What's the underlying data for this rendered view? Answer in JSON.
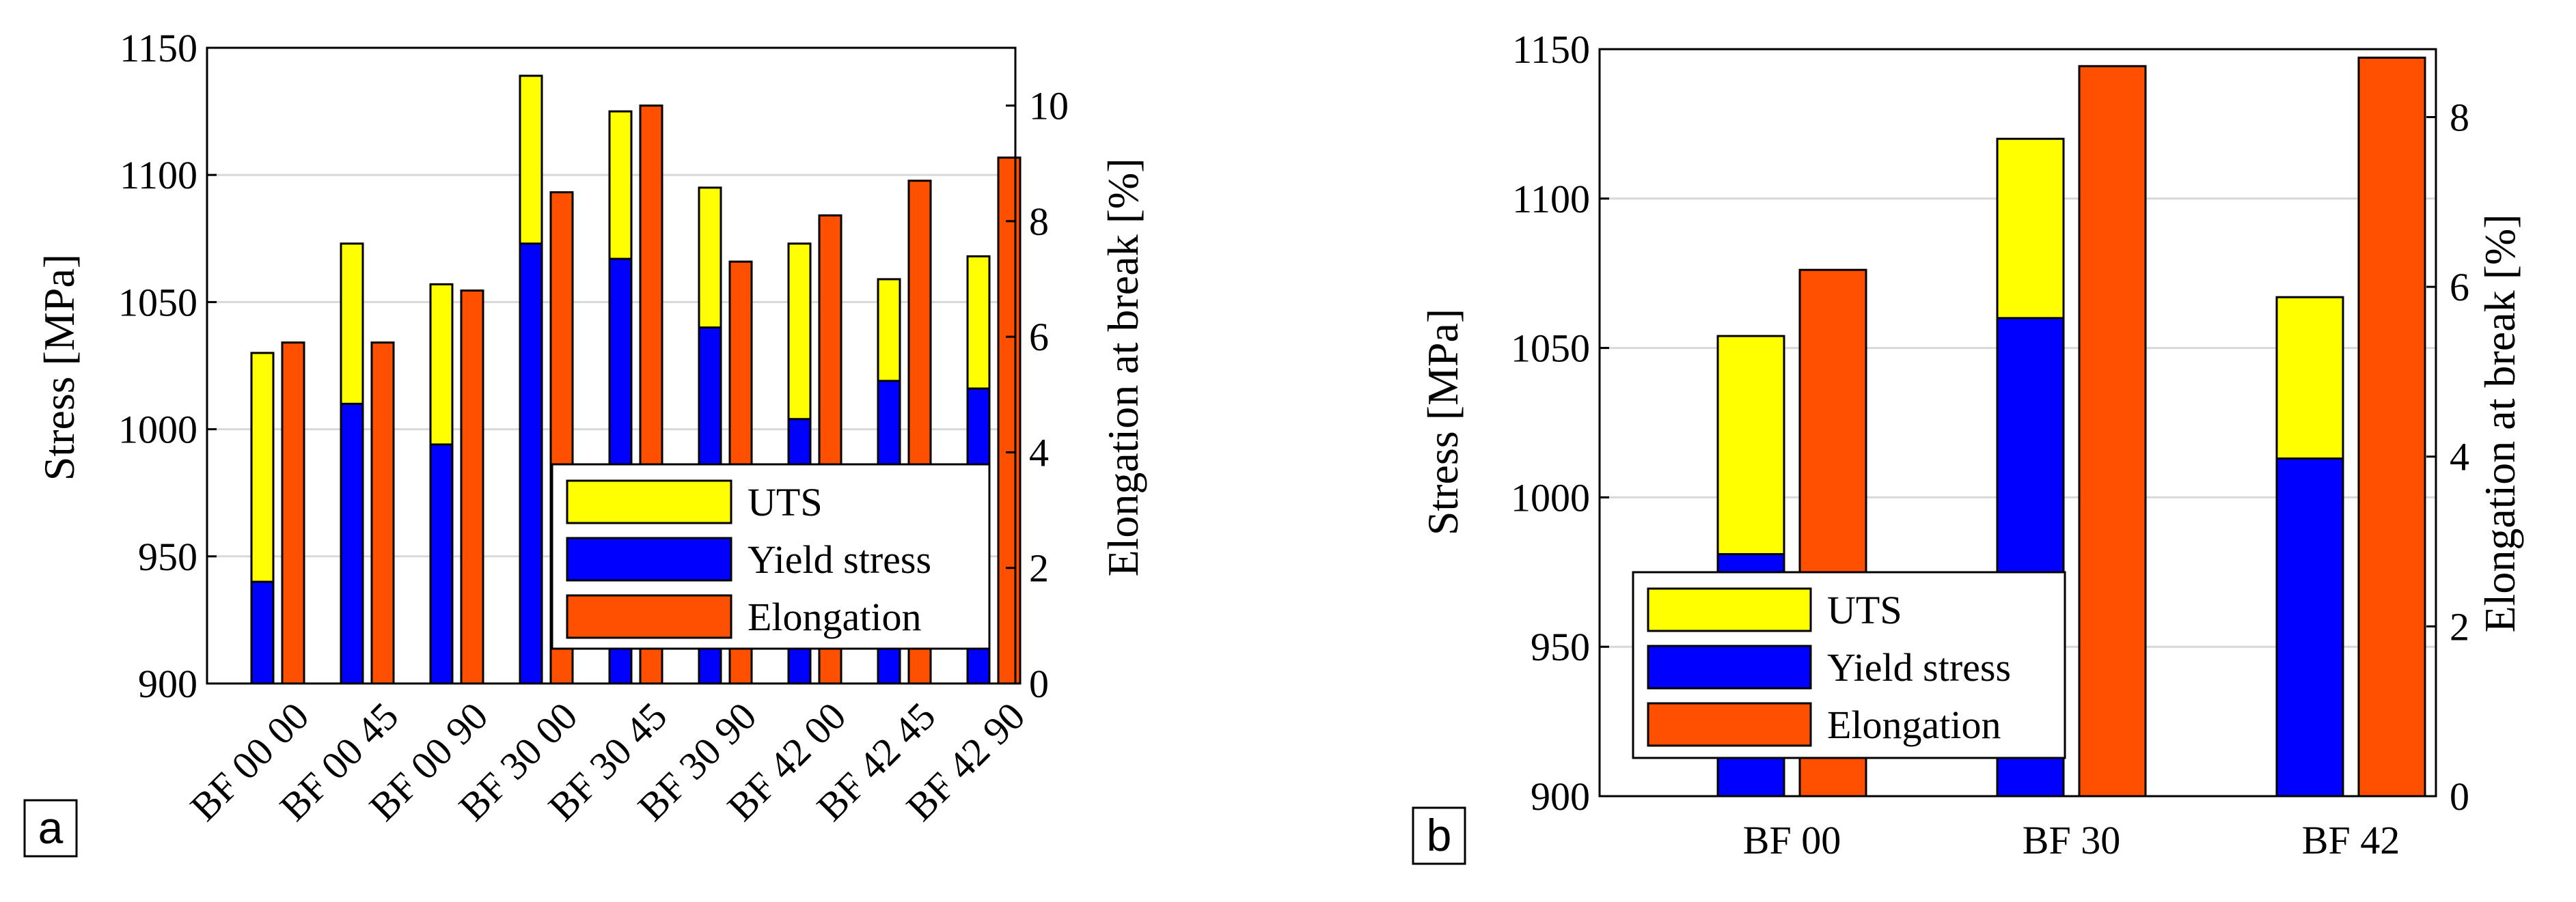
{
  "chart_data": [
    {
      "type": "bar",
      "panel_label": "a",
      "categories": [
        "BF 00 00",
        "BF 00 45",
        "BF 00 90",
        "BF 30 00",
        "BF 30 45",
        "BF 30 90",
        "BF 42 00",
        "BF 42 45",
        "BF 42 90"
      ],
      "series": [
        {
          "name": "UTS",
          "axis": "left",
          "color": "#ffff00",
          "values": [
            1030,
            1073,
            1057,
            1139,
            1125,
            1095,
            1073,
            1059,
            1068
          ]
        },
        {
          "name": "Yield stress",
          "axis": "left",
          "color": "#0000ff",
          "values": [
            940,
            1010,
            994,
            1073,
            1067,
            1040,
            1004,
            1019,
            1016
          ]
        },
        {
          "name": "Elongation",
          "axis": "right",
          "color": "#ff5000",
          "values": [
            5.9,
            5.9,
            6.8,
            8.5,
            10.0,
            7.3,
            8.1,
            8.7,
            9.1
          ]
        }
      ],
      "ylabel": "Stress [MPa]",
      "y2label": "Elongation at break [%]",
      "ylim": [
        900,
        1150
      ],
      "y2lim": [
        0,
        11
      ],
      "yticks": [
        "900",
        "950",
        "1000",
        "1050",
        "1100",
        "1150"
      ],
      "y2ticks": [
        "0",
        "2",
        "4",
        "6",
        "8",
        "10"
      ],
      "legend": [
        "UTS",
        "Yield stress",
        "Elongation"
      ],
      "legend_position": "bottom-right",
      "grid": true
    },
    {
      "type": "bar",
      "panel_label": "b",
      "categories": [
        "BF 00",
        "BF 30",
        "BF 42"
      ],
      "series": [
        {
          "name": "UTS",
          "axis": "left",
          "color": "#ffff00",
          "values": [
            1054,
            1120,
            1067
          ]
        },
        {
          "name": "Yield stress",
          "axis": "left",
          "color": "#0000ff",
          "values": [
            981,
            1060,
            1013
          ]
        },
        {
          "name": "Elongation",
          "axis": "right",
          "color": "#ff5000",
          "values": [
            6.2,
            8.6,
            8.7
          ]
        }
      ],
      "ylabel": "Stress [MPa]",
      "y2label": "Elongation at break [%]",
      "ylim": [
        900,
        1150
      ],
      "y2lim": [
        0,
        8.8
      ],
      "yticks": [
        "900",
        "950",
        "1000",
        "1050",
        "1100",
        "1150"
      ],
      "y2ticks": [
        "0",
        "2",
        "4",
        "6",
        "8"
      ],
      "legend": [
        "UTS",
        "Yield stress",
        "Elongation"
      ],
      "legend_position": "bottom-left",
      "grid": true
    }
  ]
}
